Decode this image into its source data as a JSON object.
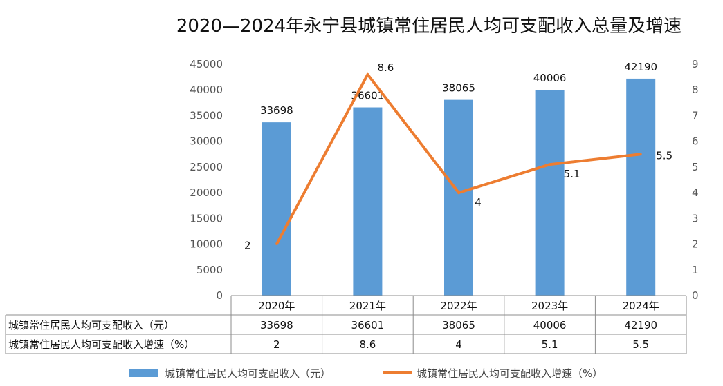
{
  "chart_data": {
    "type": "bar+line",
    "title": "2020—2024年永宁县城镇常住居民人均可支配收入总量及增速",
    "categories": [
      "2020年",
      "2021年",
      "2022年",
      "2023年",
      "2024年"
    ],
    "series": [
      {
        "name": "城镇常住居民人均可支配收入（元）",
        "type": "bar",
        "axis": "left",
        "color": "#5B9BD5",
        "values": [
          33698,
          36601,
          38065,
          40006,
          42190
        ],
        "labels": [
          "33698",
          "36601",
          "38065",
          "40006",
          "42190"
        ]
      },
      {
        "name": "城镇常住居民人均可支配收入增速（%）",
        "type": "line",
        "axis": "right",
        "color": "#ED7D31",
        "values": [
          2,
          8.6,
          4,
          5.1,
          5.5
        ],
        "labels": [
          "2",
          "8.6",
          "4",
          "5.1",
          "5.5"
        ]
      }
    ],
    "y_left": {
      "min": 0,
      "max": 45000,
      "step": 5000,
      "ticks": [
        "0",
        "5000",
        "10000",
        "15000",
        "20000",
        "25000",
        "30000",
        "35000",
        "40000",
        "45000"
      ]
    },
    "y_right": {
      "min": 0,
      "max": 9,
      "step": 1,
      "ticks": [
        "0",
        "1",
        "2",
        "3",
        "4",
        "5",
        "6",
        "7",
        "8",
        "9"
      ]
    },
    "gridlines": false,
    "legend_position": "bottom",
    "data_table": {
      "rows": [
        {
          "label": "城镇常住居民人均可支配收入（元）",
          "values": [
            "33698",
            "36601",
            "38065",
            "40006",
            "42190"
          ]
        },
        {
          "label": "城镇常住居民人均可支配收入增速（%）",
          "values": [
            "2",
            "8.6",
            "4",
            "5.1",
            "5.5"
          ]
        }
      ]
    }
  }
}
